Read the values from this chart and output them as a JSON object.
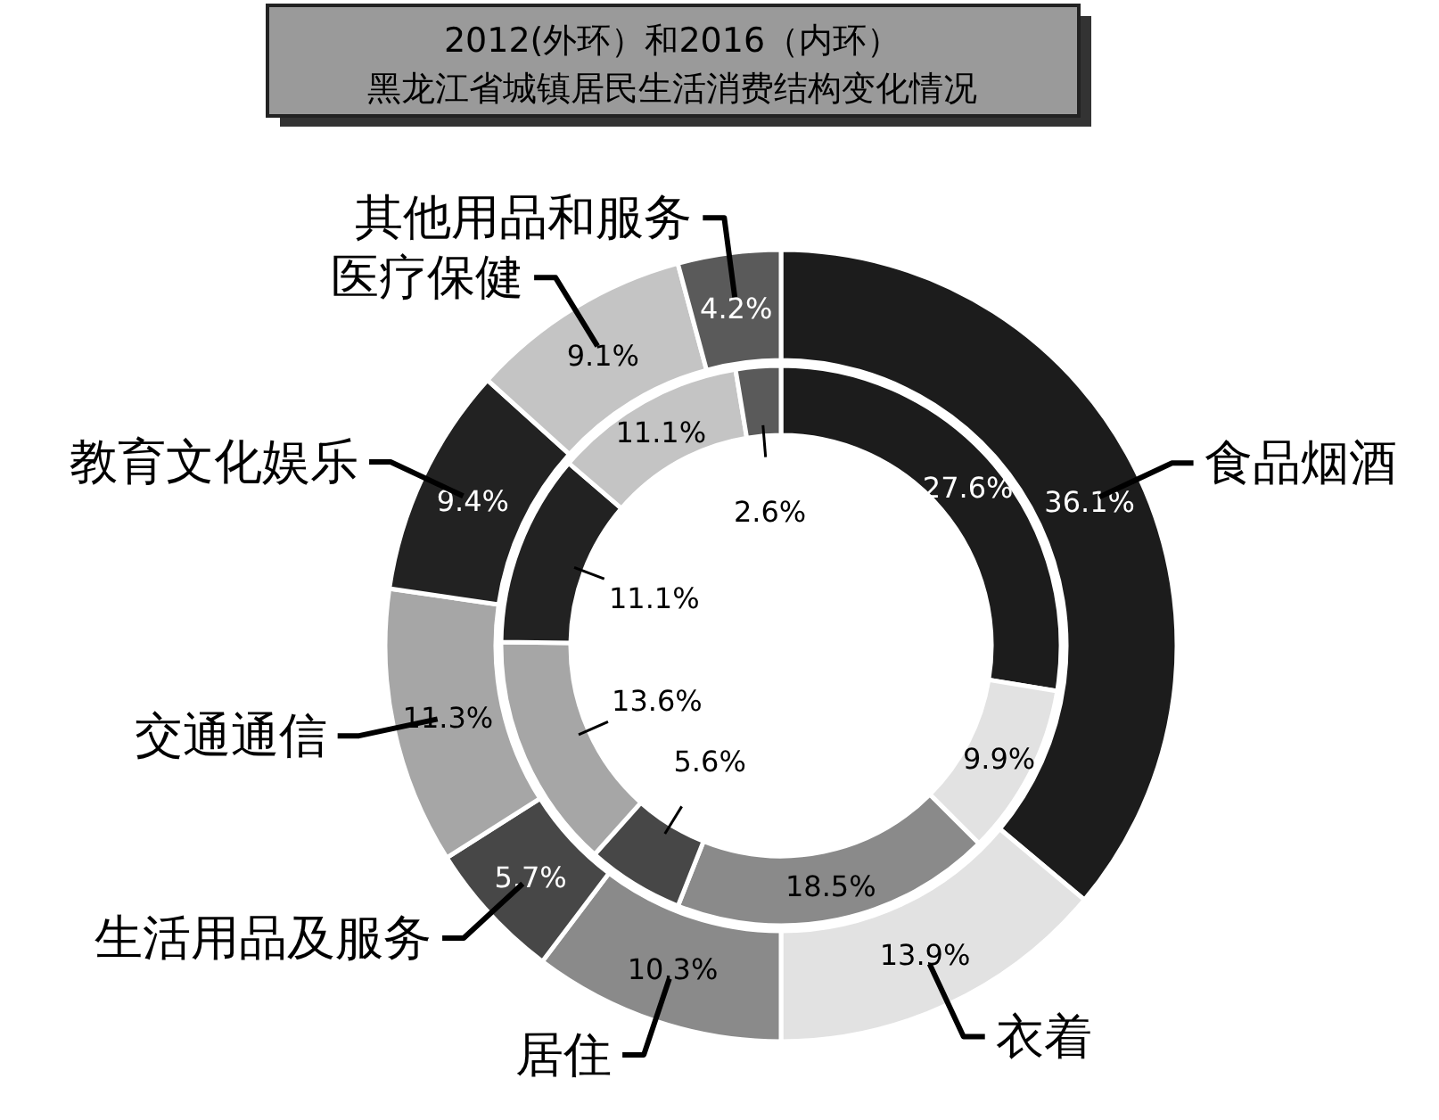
{
  "chart_data": {
    "type": "donut",
    "title": "2012(外环）和2016（内环）",
    "subtitle": "黑龙江省城镇居民生活消费结构变化情况",
    "categories": [
      "食品烟酒",
      "衣着",
      "居住",
      "生活用品及服务",
      "交通通信",
      "教育文化娱乐",
      "医疗保健",
      "其他用品和服务"
    ],
    "colors": [
      "#1c1c1c",
      "#e2e2e2",
      "#8a8a8a",
      "#474747",
      "#a6a6a6",
      "#222222",
      "#c4c4c4",
      "#5a5a5a"
    ],
    "series": [
      {
        "values": [
          36.1,
          13.9,
          10.3,
          5.7,
          11.3,
          9.4,
          9.1,
          4.2
        ],
        "value_labels": [
          "36.1%",
          "13.9%",
          "10.3%",
          "5.7%",
          "11.3%",
          "9.4%",
          "9.1%",
          "4.2%"
        ]
      },
      {
        "values": [
          27.6,
          9.9,
          18.5,
          5.6,
          13.6,
          11.1,
          11.1,
          2.6
        ],
        "value_labels": [
          "27.6%",
          "9.9%",
          "18.5%",
          "5.6%",
          "13.6%",
          "11.1%",
          "11.1%",
          "2.6%"
        ]
      }
    ]
  }
}
